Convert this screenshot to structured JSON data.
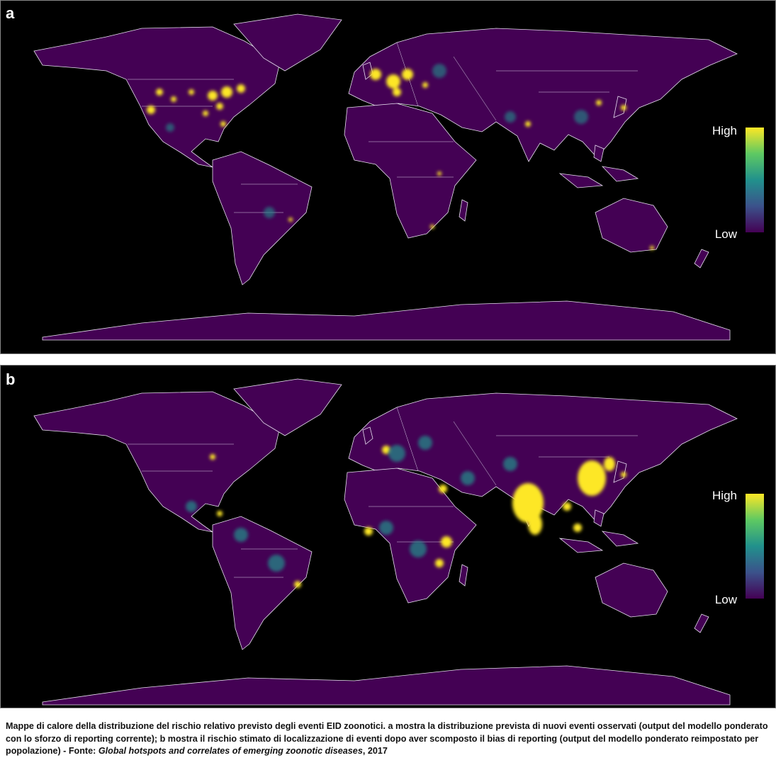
{
  "panels": [
    {
      "label": "a",
      "legend": {
        "high": "High",
        "low": "Low"
      }
    },
    {
      "label": "b",
      "legend": {
        "high": "High",
        "low": "Low"
      }
    }
  ],
  "caption": {
    "text": "Mappe di calore della distribuzione del rischio relativo previsto degli eventi EID zoonotici. a mostra la distribuzione prevista di nuovi eventi osservati (output del modello ponderato con lo sforzo di reporting corrente); b mostra il rischio stimato di localizzazione di eventi dopo aver scomposto il bias di reporting (output del modello ponderato reimpostato per popolazione) - Fonte: ",
    "source_title": "Global hotspots and correlates of emerging zoonotic diseases",
    "source_year": ", 2017"
  }
}
